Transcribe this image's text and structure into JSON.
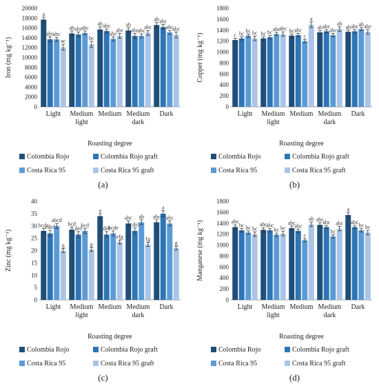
{
  "colors": [
    "#1F4E79",
    "#2E75B6",
    "#5B9BD5",
    "#A9C4E6"
  ],
  "legend": [
    "Colombia Rojo",
    "Colombia Rojo graft",
    "Costa Rica 95",
    "Costa Rica 95 graft"
  ],
  "chart_data": [
    {
      "type": "bar",
      "panel_label": "(a)",
      "categories": [
        "Light",
        "Medium light",
        "Medium",
        "Medium dark",
        "Dark"
      ],
      "category_lines": [
        [
          "Light"
        ],
        [
          "Medium",
          "light"
        ],
        [
          "Medium"
        ],
        [
          "Medium",
          "dark"
        ],
        [
          "Dark"
        ]
      ],
      "xlabel": "Roasting degree",
      "ylabel": "Iron (mg kg⁻¹)",
      "ylim": [
        0,
        20000
      ],
      "yticks": [
        0,
        2000,
        4000,
        6000,
        8000,
        10000,
        12000,
        14000,
        16000,
        18000,
        20000
      ],
      "ytick_labels": [
        "0",
        "2000",
        "4000",
        "6000",
        "8000",
        "10000",
        "12000",
        "14000",
        "16000",
        "18000",
        "20000"
      ],
      "series": [
        {
          "name": "Colombia Rojo",
          "values": [
            17700,
            14900,
            15700,
            15500,
            16600
          ],
          "errors": [
            500,
            500,
            500,
            500,
            500
          ],
          "letters": [
            "a",
            "ab",
            "ab",
            "ab",
            "ab"
          ]
        },
        {
          "name": "Colombia Rojo graft",
          "values": [
            13700,
            14700,
            15400,
            14400,
            16200
          ],
          "errors": [
            500,
            500,
            400,
            500,
            500
          ],
          "letters": [
            "abc",
            "abc",
            "abc",
            "abc",
            "abc"
          ]
        },
        {
          "name": "Costa Rica 95",
          "values": [
            13700,
            15000,
            13800,
            14400,
            15100
          ],
          "errors": [
            400,
            400,
            400,
            400,
            400
          ],
          "letters": [
            "abc",
            "abc",
            "abc",
            "abc",
            "abc"
          ]
        },
        {
          "name": "Costa Rica 95 graft",
          "values": [
            12100,
            12700,
            14400,
            15000,
            14600
          ],
          "errors": [
            600,
            600,
            500,
            500,
            600
          ],
          "letters": [
            "ac",
            "bc",
            "abc",
            "abc",
            "abc"
          ]
        }
      ]
    },
    {
      "type": "bar",
      "panel_label": "(b)",
      "categories": [
        "Light",
        "Medium light",
        "Medium",
        "Medium dark",
        "Dark"
      ],
      "category_lines": [
        [
          "Light"
        ],
        [
          "Medium",
          "light"
        ],
        [
          "Medium"
        ],
        [
          "Medium",
          "dark"
        ],
        [
          "Dark"
        ]
      ],
      "xlabel": "Roasting degree",
      "ylabel": "Copper (mg kg⁻¹)",
      "ylim": [
        0,
        1800
      ],
      "yticks": [
        0,
        200,
        400,
        600,
        800,
        1000,
        1200,
        1400,
        1600,
        1800
      ],
      "ytick_labels": [
        "0",
        "200",
        "400",
        "600",
        "800",
        "1000",
        "1200",
        "1400",
        "1600",
        "1800"
      ],
      "series": [
        {
          "name": "Colombia Rojo",
          "values": [
            1220,
            1250,
            1300,
            1360,
            1370
          ],
          "errors": [
            30,
            30,
            30,
            30,
            30
          ],
          "letters": [
            "c",
            "bc",
            "bc",
            "ab",
            "ab"
          ]
        },
        {
          "name": "Colombia Rojo graft",
          "values": [
            1250,
            1270,
            1310,
            1380,
            1380
          ],
          "errors": [
            30,
            30,
            30,
            30,
            30
          ],
          "letters": [
            "bc",
            "bc",
            "abc",
            "abc",
            "abc"
          ]
        },
        {
          "name": "Costa Rica 95",
          "values": [
            1300,
            1330,
            1200,
            1310,
            1420
          ],
          "errors": [
            30,
            30,
            30,
            30,
            30
          ],
          "letters": [
            "bc",
            "abc",
            "c",
            "abc",
            "ab"
          ]
        },
        {
          "name": "Costa Rica 95 graft",
          "values": [
            1250,
            1330,
            1500,
            1420,
            1370
          ],
          "errors": [
            40,
            40,
            50,
            40,
            40
          ],
          "letters": [
            "bc",
            "abc",
            "a",
            "ab",
            "abc"
          ]
        }
      ]
    },
    {
      "type": "bar",
      "panel_label": "(c)",
      "categories": [
        "Light",
        "Medium light",
        "Medium",
        "Medium dark",
        "Dark"
      ],
      "category_lines": [
        [
          "Light"
        ],
        [
          "Medium",
          "light"
        ],
        [
          "Medium"
        ],
        [
          "Medium",
          "dark"
        ],
        [
          "Dark"
        ]
      ],
      "xlabel": "Roasting degree",
      "ylabel": "Zinc (mg kg⁻¹)",
      "ylim": [
        0,
        40
      ],
      "yticks": [
        0,
        5,
        10,
        15,
        20,
        25,
        30,
        35,
        40
      ],
      "ytick_labels": [
        "0",
        "5",
        "10",
        "15",
        "20",
        "25",
        "30",
        "35",
        "40"
      ],
      "series": [
        {
          "name": "Colombia Rojo",
          "values": [
            28,
            28.5,
            34,
            31,
            31.5
          ],
          "errors": [
            1,
            1,
            1,
            1,
            1
          ],
          "letters": [
            "bcde",
            "bcd",
            "a",
            "abc",
            "abc"
          ]
        },
        {
          "name": "Colombia Rojo graft",
          "values": [
            27,
            26.5,
            26.5,
            28,
            35
          ],
          "errors": [
            1.2,
            1.2,
            1.2,
            1.2,
            1.2
          ],
          "letters": [
            "cdef",
            "def",
            "def",
            "cdef",
            "a"
          ]
        },
        {
          "name": "Costa Rica 95",
          "values": [
            30,
            28,
            27,
            31.5,
            31
          ],
          "errors": [
            1,
            1,
            1,
            1,
            1
          ],
          "letters": [
            "abcd",
            "bcd",
            "bcde",
            "ab",
            "abc"
          ]
        },
        {
          "name": "Costa Rica 95 graft",
          "values": [
            20,
            20.5,
            23.5,
            22.5,
            21
          ],
          "errors": [
            0.8,
            0.8,
            0.8,
            0.8,
            0.8
          ],
          "letters": [
            "g",
            "g",
            "efg",
            "fg",
            "g"
          ]
        }
      ]
    },
    {
      "type": "bar",
      "panel_label": "(d)",
      "categories": [
        "Light",
        "Medium light",
        "Medium",
        "Medium dark",
        "Dark"
      ],
      "category_lines": [
        [
          "Light"
        ],
        [
          "Medium",
          "light"
        ],
        [
          "Medium"
        ],
        [
          "Medium",
          "dark"
        ],
        [
          "Dark"
        ]
      ],
      "xlabel": "Roasting degree",
      "ylabel": "Manganese (mg kg⁻¹)",
      "ylim": [
        0,
        1800
      ],
      "yticks": [
        0,
        200,
        400,
        600,
        800,
        1000,
        1200,
        1400,
        1600,
        1800
      ],
      "ytick_labels": [
        "0",
        "200",
        "400",
        "600",
        "800",
        "1000",
        "1200",
        "1400",
        "1600",
        "1800"
      ],
      "series": [
        {
          "name": "Colombia Rojo",
          "values": [
            1330,
            1280,
            1310,
            1370,
            1550
          ],
          "errors": [
            40,
            40,
            40,
            40,
            50
          ],
          "letters": [
            "abc",
            "abc",
            "abc",
            "abc",
            "a"
          ]
        },
        {
          "name": "Colombia Rojo graft",
          "values": [
            1270,
            1270,
            1260,
            1330,
            1330
          ],
          "errors": [
            30,
            30,
            30,
            30,
            30
          ],
          "letters": [
            "bc",
            "abc",
            "abc",
            "abc",
            "abc"
          ]
        },
        {
          "name": "Costa Rica 95",
          "values": [
            1230,
            1190,
            1090,
            1160,
            1270
          ],
          "errors": [
            30,
            30,
            30,
            30,
            30
          ],
          "letters": [
            "bc",
            "bc",
            "c",
            "bc",
            "bc"
          ]
        },
        {
          "name": "Costa Rica 95 graft",
          "values": [
            1200,
            1210,
            1380,
            1300,
            1230
          ],
          "errors": [
            40,
            40,
            40,
            40,
            40
          ],
          "letters": [
            "bc",
            "bc",
            "ab",
            "abc",
            "bc"
          ]
        }
      ]
    }
  ]
}
